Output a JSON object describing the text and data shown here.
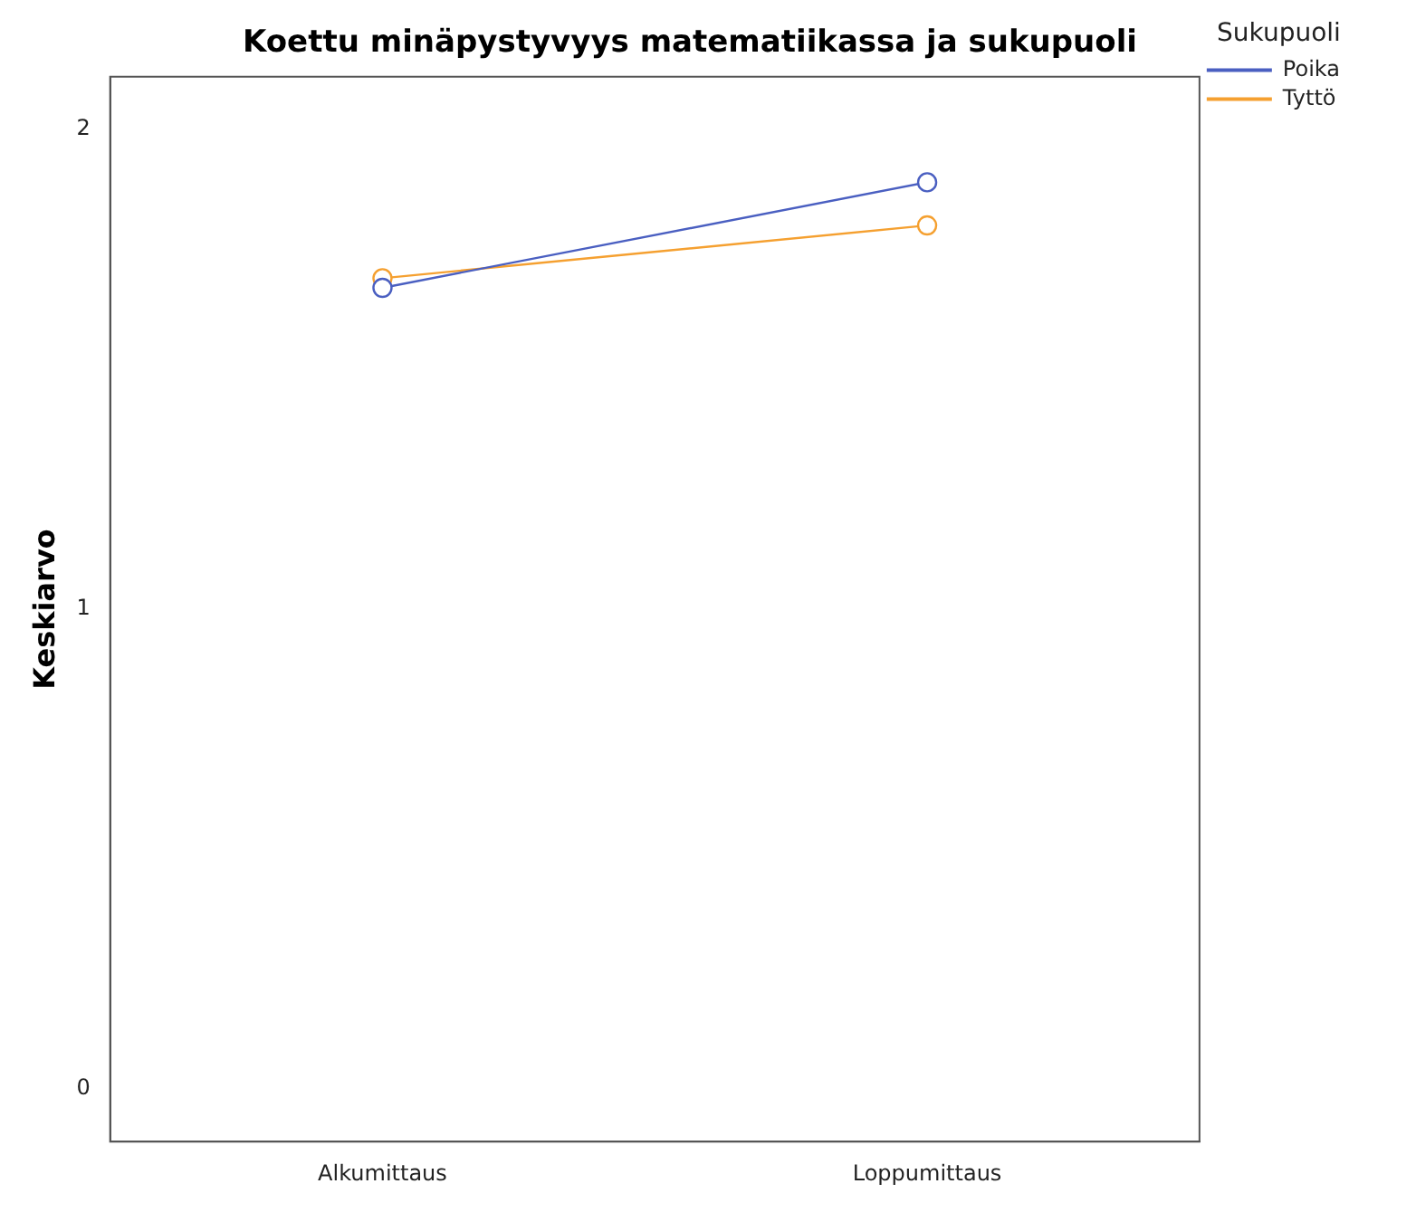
{
  "chart_data": {
    "type": "line",
    "title": "Koettu minäpystyvyys matematiikassa ja sukupuoli",
    "ylabel": "Keskiarvo",
    "legend_title": "Sukupuoli",
    "legend": "top right",
    "marker": "circle",
    "grid": false,
    "categories": [
      "Alkumittaus",
      "Loppumittaus"
    ],
    "series": [
      {
        "name": "Poika",
        "color": "#4a5fc1",
        "values": [
          1.67,
          1.89
        ]
      },
      {
        "name": "Tyttö",
        "color": "#f5a030",
        "values": [
          1.69,
          1.8
        ]
      }
    ],
    "ylim": [
      -0.11,
      2.11
    ],
    "yticks": [
      0,
      1,
      2
    ]
  }
}
